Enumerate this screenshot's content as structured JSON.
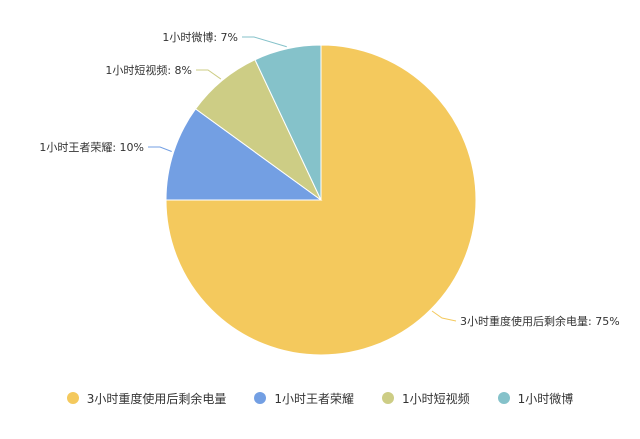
{
  "chart_data": {
    "type": "pie",
    "title": "",
    "legend_position": "bottom",
    "slices": [
      {
        "label": "3小时重度使用后剩余电量",
        "value": 75,
        "label_text": "3小时重度使用后剩余电量: 75%",
        "color": "#F4C95D"
      },
      {
        "label": "1小时王者荣耀",
        "value": 10,
        "label_text": "1小时王者荣耀: 10%",
        "color": "#739FE3"
      },
      {
        "label": "1小时短视频",
        "value": 8,
        "label_text": "1小时短视频: 8%",
        "color": "#CDCD85"
      },
      {
        "label": "1小时微博",
        "value": 7,
        "label_text": "1小时微博: 7%",
        "color": "#85C2CA"
      }
    ]
  }
}
